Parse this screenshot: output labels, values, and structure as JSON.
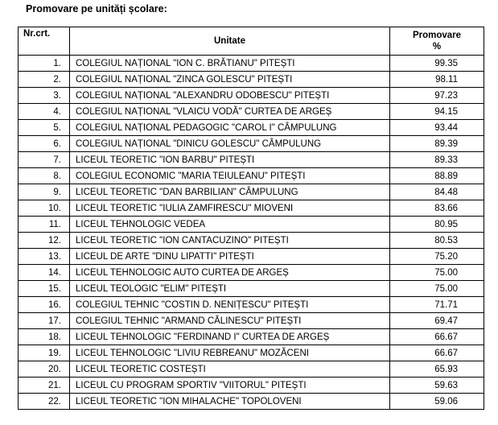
{
  "title": "Promovare pe unități școlare:",
  "table": {
    "header": {
      "nr": "Nr.crt.",
      "unit": "Unitate",
      "promovare": "Promovare",
      "percent": "%"
    },
    "rows": [
      [
        "1.",
        "COLEGIUL NAȚIONAL \"ION C. BRĂTIANU\" PITEȘTI",
        "99.35"
      ],
      [
        "2.",
        "COLEGIUL NAȚIONAL \"ZINCA GOLESCU\" PITEȘTI",
        "98.11"
      ],
      [
        "3.",
        "COLEGIUL NAȚIONAL \"ALEXANDRU ODOBESCU\" PITEȘTI",
        "97.23"
      ],
      [
        "4.",
        "COLEGIUL NAȚIONAL \"VLAICU VODĂ\" CURTEA DE ARGEȘ",
        "94.15"
      ],
      [
        "5.",
        "COLEGIUL NAȚIONAL PEDAGOGIC \"CAROL I\" CÂMPULUNG",
        "93.44"
      ],
      [
        "6.",
        "COLEGIUL NAȚIONAL \"DINICU GOLESCU\" CÂMPULUNG",
        "89.39"
      ],
      [
        "7.",
        "LICEUL TEORETIC \"ION BARBU\" PITEȘTI",
        "89.33"
      ],
      [
        "8.",
        "COLEGIUL ECONOMIC \"MARIA TEIULEANU\" PITEȘTI",
        "88.89"
      ],
      [
        "9.",
        "LICEUL TEORETIC \"DAN BARBILIAN\" CÂMPULUNG",
        "84.48"
      ],
      [
        "10.",
        "LICEUL TEORETIC \"IULIA ZAMFIRESCU\" MIOVENI",
        "83.66"
      ],
      [
        "11.",
        "LICEUL TEHNOLOGIC VEDEA",
        "80.95"
      ],
      [
        "12.",
        "LICEUL TEORETIC \"ION CANTACUZINO\" PITEȘTI",
        "80.53"
      ],
      [
        "13.",
        "LICEUL DE ARTE \"DINU LIPATTI\" PITEȘTI",
        "75.20"
      ],
      [
        "14.",
        "LICEUL TEHNOLOGIC AUTO CURTEA DE ARGEȘ",
        "75.00"
      ],
      [
        "15.",
        "LICEUL TEOLOGIC \"ELIM\" PITEȘTI",
        "75.00"
      ],
      [
        "16.",
        "COLEGIUL TEHNIC \"COSTIN D. NENIȚESCU\" PITEȘTI",
        "71.71"
      ],
      [
        "17.",
        "COLEGIUL TEHNIC \"ARMAND CĂLINESCU\" PITEȘTI",
        "69.47"
      ],
      [
        "18.",
        "LICEUL TEHNOLOGIC \"FERDINAND I\" CURTEA DE ARGEȘ",
        "66.67"
      ],
      [
        "19.",
        "LICEUL TEHNOLOGIC \"LIVIU REBREANU\" MOZĂCENI",
        "66.67"
      ],
      [
        "20.",
        "LICEUL TEORETIC COSTEȘTI",
        "65.93"
      ],
      [
        "21.",
        "LICEUL CU PROGRAM SPORTIV \"VIITORUL\" PITEȘTI",
        "59.63"
      ],
      [
        "22.",
        "LICEUL TEORETIC \"ION MIHALACHE\" TOPOLOVENI",
        "59.06"
      ]
    ]
  }
}
